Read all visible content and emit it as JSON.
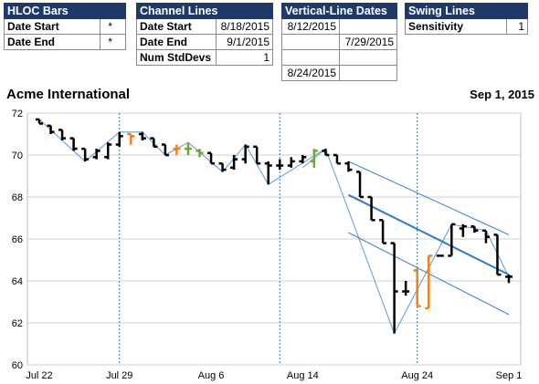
{
  "hloc": {
    "title": "HLOC Bars",
    "rows": [
      {
        "label": "Date Start",
        "value": "*"
      },
      {
        "label": "Date End",
        "value": "*"
      }
    ]
  },
  "channel": {
    "title": "Channel Lines",
    "rows": [
      {
        "label": "Date Start",
        "value": "8/18/2015"
      },
      {
        "label": "Date End",
        "value": "9/1/2015"
      },
      {
        "label": "Num StdDevs",
        "value": "1"
      }
    ]
  },
  "vlines": {
    "title": "Vertical-Line Dates",
    "rows": [
      [
        "8/12/2015",
        ""
      ],
      [
        "",
        "7/29/2015"
      ],
      [
        "",
        ""
      ],
      [
        "8/24/2015",
        ""
      ]
    ]
  },
  "swing": {
    "title": "Swing Lines",
    "rows": [
      {
        "label": "Sensitivity",
        "value": "1"
      }
    ]
  },
  "chart_data": {
    "type": "line",
    "title": "Acme International",
    "date_label": "Sep 1, 2015",
    "y_ticks": [
      "72",
      "70",
      "68",
      "66",
      "64",
      "62",
      "60"
    ],
    "ylim": [
      60,
      72
    ],
    "x_ticks": [
      "Jul 22",
      "Jul 29",
      "Aug 6",
      "Aug 14",
      "Aug 24",
      "Sep 1"
    ],
    "grid": true,
    "colors": {
      "bar": "#000000",
      "highlight_orange": "#f07f20",
      "highlight_green": "#6ea63a",
      "swing": "#5b9bd5",
      "channel": "#2e7cc9",
      "vline": "#2e75b6"
    },
    "bars": [
      {
        "date": "Jul 22",
        "open": 71.7,
        "high": 71.7,
        "low": 71.5,
        "close": 71.5
      },
      {
        "date": "Jul 23",
        "open": 71.4,
        "high": 71.4,
        "low": 71.0,
        "close": 71.1
      },
      {
        "date": "Jul 24",
        "open": 71.2,
        "high": 71.2,
        "low": 70.7,
        "close": 70.8
      },
      {
        "date": "Jul 25",
        "open": 70.8,
        "high": 70.8,
        "low": 70.2,
        "close": 70.3
      },
      {
        "date": "Jul 26",
        "open": 70.3,
        "high": 70.3,
        "low": 69.7,
        "close": 69.8
      },
      {
        "date": "Jul 27",
        "open": 69.9,
        "high": 70.3,
        "low": 69.8,
        "close": 70.2
      },
      {
        "date": "Jul 28",
        "open": 69.9,
        "high": 70.6,
        "low": 69.8,
        "close": 70.5
      },
      {
        "date": "Jul 29",
        "open": 70.5,
        "high": 71.1,
        "low": 70.4,
        "close": 70.9
      },
      {
        "date": "Jul 30",
        "open": 71.0,
        "high": 71.0,
        "low": 70.5,
        "close": 70.9,
        "color": "orange"
      },
      {
        "date": "Jul 31",
        "open": 71.0,
        "high": 71.1,
        "low": 70.7,
        "close": 70.8
      },
      {
        "date": "Aug 1",
        "open": 70.8,
        "high": 70.8,
        "low": 70.4,
        "close": 70.4
      },
      {
        "date": "Aug 2",
        "open": 70.5,
        "high": 70.5,
        "low": 70.0,
        "close": 70.0
      },
      {
        "date": "Aug 3",
        "open": 70.3,
        "high": 70.5,
        "low": 70.0,
        "close": 70.3,
        "color": "orange"
      },
      {
        "date": "Aug 4",
        "open": 70.3,
        "high": 70.6,
        "low": 70.0,
        "close": 70.3,
        "color": "green"
      },
      {
        "date": "Aug 5",
        "open": 70.2,
        "high": 70.3,
        "low": 69.9,
        "close": 70.1,
        "color": "green"
      },
      {
        "date": "Aug 6",
        "open": 70.1,
        "high": 70.1,
        "low": 69.6,
        "close": 69.6
      },
      {
        "date": "Aug 7",
        "open": 69.6,
        "high": 69.6,
        "low": 69.2,
        "close": 69.3
      },
      {
        "date": "Aug 8",
        "open": 69.4,
        "high": 70.0,
        "low": 69.3,
        "close": 69.8
      },
      {
        "date": "Aug 9",
        "open": 69.8,
        "high": 70.5,
        "low": 69.6,
        "close": 70.4
      },
      {
        "date": "Aug 10",
        "open": 70.4,
        "high": 70.4,
        "low": 69.6,
        "close": 69.6
      },
      {
        "date": "Aug 11",
        "open": 69.6,
        "high": 69.7,
        "low": 68.6,
        "close": 69.5
      },
      {
        "date": "Aug 12",
        "open": 69.5,
        "high": 69.8,
        "low": 69.3,
        "close": 69.5
      },
      {
        "date": "Aug 13",
        "open": 69.5,
        "high": 69.9,
        "low": 69.4,
        "close": 69.7
      },
      {
        "date": "Aug 14",
        "open": 69.7,
        "high": 70.0,
        "low": 69.6,
        "close": 69.9
      },
      {
        "date": "Aug 15",
        "open": 69.7,
        "high": 70.3,
        "low": 69.4,
        "close": 70.2,
        "color": "green"
      },
      {
        "date": "Aug 16",
        "open": 70.2,
        "high": 70.3,
        "low": 70.0,
        "close": 70.0
      },
      {
        "date": "Aug 17",
        "open": 70.0,
        "high": 70.0,
        "low": 69.6,
        "close": 69.6
      },
      {
        "date": "Aug 18",
        "open": 69.6,
        "high": 69.7,
        "low": 69.2,
        "close": 69.3
      },
      {
        "date": "Aug 19",
        "open": 69.2,
        "high": 69.2,
        "low": 68.0,
        "close": 68.0
      },
      {
        "date": "Aug 20",
        "open": 68.0,
        "high": 68.0,
        "low": 66.9,
        "close": 66.9
      },
      {
        "date": "Aug 21",
        "open": 66.9,
        "high": 66.9,
        "low": 65.8,
        "close": 65.8
      },
      {
        "date": "Aug 22",
        "open": 65.8,
        "high": 65.8,
        "low": 61.5,
        "close": 63.5
      },
      {
        "date": "Aug 23",
        "open": 63.5,
        "high": 64.0,
        "low": 63.3,
        "close": 63.5
      },
      {
        "date": "Aug 24",
        "open": 64.5,
        "high": 64.6,
        "low": 62.8,
        "close": 62.8,
        "color": "orange"
      },
      {
        "date": "Aug 25",
        "open": 62.7,
        "high": 65.2,
        "low": 62.7,
        "close": 65.2,
        "color": "orange"
      },
      {
        "date": "Aug 26",
        "open": 65.2,
        "high": 65.2,
        "low": 65.2,
        "close": 65.2
      },
      {
        "date": "Aug 27",
        "open": 65.2,
        "high": 66.7,
        "low": 65.2,
        "close": 66.7
      },
      {
        "date": "Aug 28",
        "open": 66.5,
        "high": 66.7,
        "low": 66.1,
        "close": 66.6
      },
      {
        "date": "Aug 29",
        "open": 66.6,
        "high": 66.6,
        "low": 66.3,
        "close": 66.4
      },
      {
        "date": "Aug 30",
        "open": 66.4,
        "high": 66.4,
        "low": 65.8,
        "close": 66.1
      },
      {
        "date": "Aug 31",
        "open": 66.2,
        "high": 66.2,
        "low": 64.3,
        "close": 64.3
      },
      {
        "date": "Sep 1",
        "open": 64.2,
        "high": 64.3,
        "low": 63.9,
        "close": 64.2
      }
    ],
    "swing_line": [
      {
        "date": "Jul 22",
        "value": 71.7
      },
      {
        "date": "Jul 26",
        "value": 69.7
      },
      {
        "date": "Jul 29",
        "value": 71.1
      },
      {
        "date": "Jul 31",
        "value": 71.1
      },
      {
        "date": "Aug 2",
        "value": 70.0
      },
      {
        "date": "Aug 4",
        "value": 70.6
      },
      {
        "date": "Aug 7",
        "value": 69.2
      },
      {
        "date": "Aug 9",
        "value": 70.5
      },
      {
        "date": "Aug 11",
        "value": 68.6
      },
      {
        "date": "Aug 16",
        "value": 70.3
      },
      {
        "date": "Aug 22",
        "value": 61.5
      },
      {
        "date": "Aug 27",
        "value": 66.7
      },
      {
        "date": "Aug 30",
        "value": 66.4
      },
      {
        "date": "Sep 1",
        "value": 64.2
      }
    ],
    "swing_extra": [
      {
        "date": "Aug 14",
        "value": 69.4
      },
      {
        "date": "Aug 16",
        "value": 70.3
      }
    ],
    "channel_lines": {
      "center": [
        {
          "date": "Aug 18",
          "value": 68.1
        },
        {
          "date": "Sep 1",
          "value": 64.3
        }
      ],
      "upper": [
        {
          "date": "Aug 18",
          "value": 69.7
        },
        {
          "date": "Sep 1",
          "value": 66.2
        }
      ],
      "lower": [
        {
          "date": "Aug 18",
          "value": 66.3
        },
        {
          "date": "Sep 1",
          "value": 62.4
        }
      ]
    },
    "vertical_lines": [
      "Jul 29",
      "Aug 12",
      "Aug 24"
    ]
  }
}
